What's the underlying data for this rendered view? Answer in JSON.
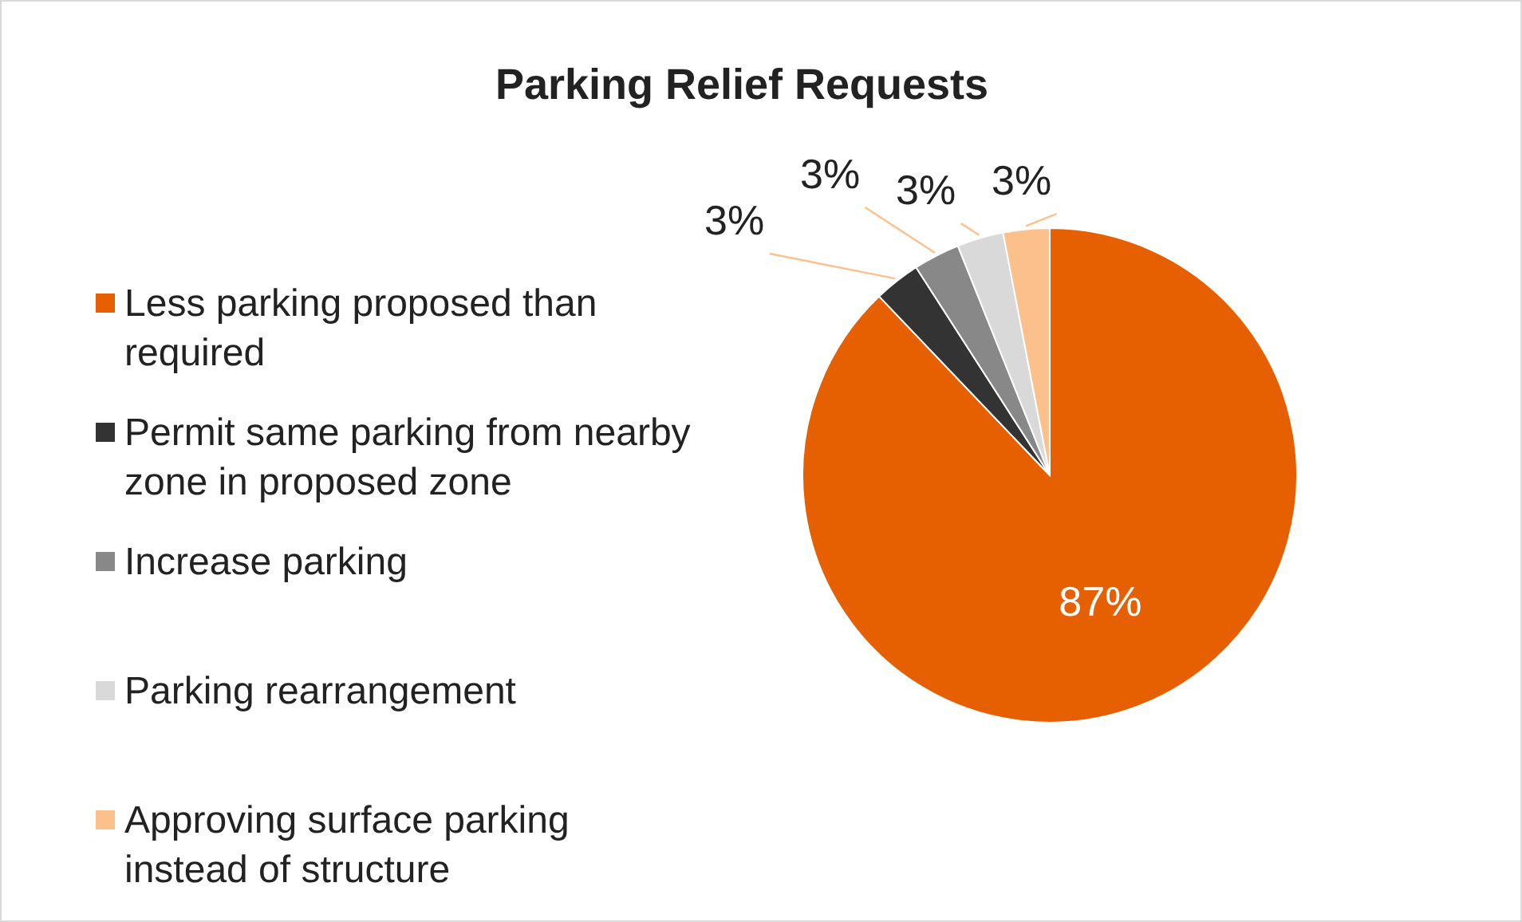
{
  "chart_data": {
    "type": "pie",
    "title": "Parking Relief Requests",
    "categories": [
      "Less parking proposed than required",
      "Permit same parking from nearby zone in proposed zone",
      "Increase parking",
      "Parking rearrangement",
      "Approving surface parking instead of structure"
    ],
    "values": [
      87,
      3,
      3,
      3,
      3
    ],
    "colors": [
      "#e65f00",
      "#333333",
      "#888888",
      "#d9d9d9",
      "#fcc08c"
    ],
    "value_labels": [
      "87%",
      "3%",
      "3%",
      "3%",
      "3%"
    ],
    "legend": "left"
  }
}
